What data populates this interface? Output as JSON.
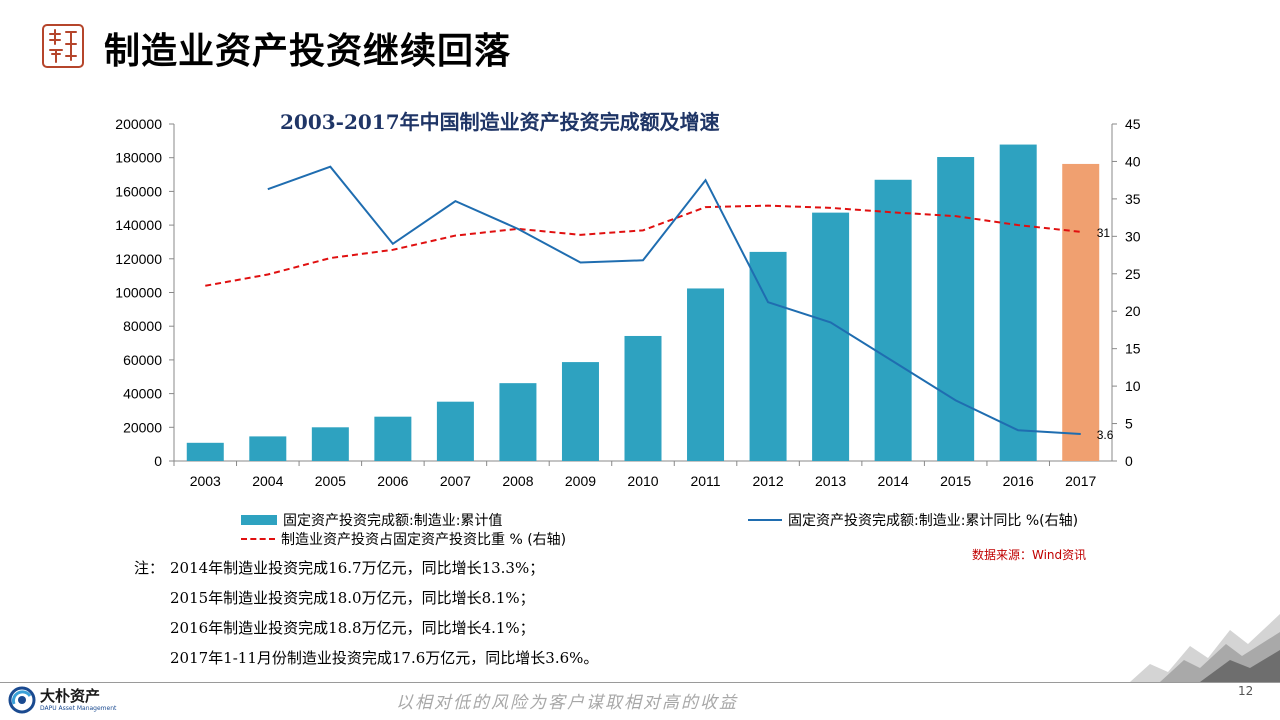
{
  "title": "制造业资产投资继续回落",
  "logo_seal": {
    "icon": "seal-icon",
    "color": "#b5452b"
  },
  "chart_data": {
    "type": "bar",
    "title": "2003-2017年中国制造业资产投资完成额及增速",
    "categories": [
      "2003",
      "2004",
      "2005",
      "2006",
      "2007",
      "2008",
      "2009",
      "2010",
      "2011",
      "2012",
      "2013",
      "2014",
      "2015",
      "2016",
      "2017"
    ],
    "y_left": {
      "lim": [
        0,
        200000
      ],
      "ticks": [
        "0",
        "20000",
        "40000",
        "60000",
        "80000",
        "100000",
        "120000",
        "140000",
        "160000",
        "180000",
        "200000"
      ]
    },
    "y_right": {
      "lim": [
        0,
        45
      ],
      "ticks": [
        "0",
        "5",
        "10",
        "15",
        "20",
        "25",
        "30",
        "35",
        "40",
        "45"
      ]
    },
    "series": [
      {
        "name": "固定资产投资完成额:制造业:累计值",
        "kind": "bar",
        "axis": "left",
        "color": "#2ea2c0",
        "highlight_color": "#f0a070",
        "values": [
          10800,
          14600,
          20000,
          26300,
          35200,
          46200,
          58700,
          74200,
          102400,
          124100,
          147400,
          166900,
          180400,
          187800,
          176300
        ]
      },
      {
        "name": "固定资产投资完成额:制造业:累计同比 %(右轴)",
        "kind": "line",
        "axis": "right",
        "color": "#1f6db0",
        "values": [
          null,
          36.3,
          39.3,
          29.0,
          34.7,
          31.0,
          26.5,
          26.8,
          37.5,
          21.2,
          18.5,
          13.3,
          8.1,
          4.1,
          3.6
        ]
      },
      {
        "name": "制造业资产投资占固定资产投资比重 % (右轴)",
        "kind": "dashed-line",
        "axis": "right",
        "color": "#e01010",
        "values": [
          23.4,
          24.9,
          27.1,
          28.2,
          30.1,
          31.0,
          30.2,
          30.8,
          33.9,
          34.1,
          33.8,
          33.2,
          32.7,
          31.5,
          30.6
        ]
      }
    ],
    "data_labels": [
      {
        "series": 2,
        "index": 14,
        "text": "31"
      },
      {
        "series": 1,
        "index": 14,
        "text": "3.6"
      }
    ],
    "legend_position": "bottom",
    "grid": false
  },
  "source": "数据来源：Wind资讯",
  "notes": {
    "prefix": "注：",
    "lines": [
      "2014年制造业投资完成16.7万亿元，同比增长13.3%；",
      "2015年制造业投资完成18.0万亿元，同比增长8.1%；",
      "2016年制造业投资完成18.8万亿元，同比增长4.1%；",
      "2017年1-11月份制造业投资完成17.6万亿元，同比增长3.6%。"
    ]
  },
  "footer": {
    "logo_cn": "大朴资产",
    "logo_en": "DAPU Asset Management",
    "slogan": "以相对低的风险为客户谋取相对高的收益",
    "page_number": "12"
  }
}
